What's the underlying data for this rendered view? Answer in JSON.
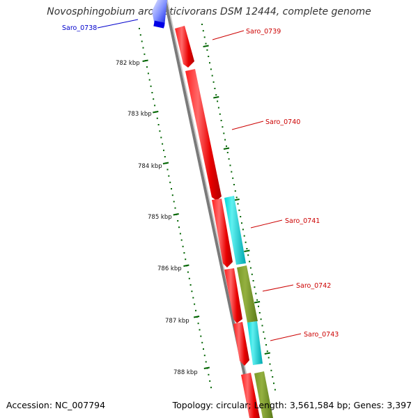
{
  "title": "Novosphingobium aromaticivorans DSM 12444, complete genome",
  "footer": {
    "accession": "Accession: NC_007794",
    "topology": "Topology: circular; Length: 3,561,584 bp; Genes: 3,397"
  },
  "ticks": [
    "782 kbp",
    "783 kbp",
    "784 kbp",
    "785 kbp",
    "786 kbp",
    "787 kbp",
    "788 kbp"
  ],
  "genes": [
    {
      "label": "Saro_0738",
      "color": "#1010cc"
    },
    {
      "label": "Saro_0739",
      "color": "#cc0000"
    },
    {
      "label": "Saro_0740",
      "color": "#cc0000"
    },
    {
      "label": "Saro_0741",
      "color": "#cc0000"
    },
    {
      "label": "Saro_0742",
      "color": "#cc0000"
    },
    {
      "label": "Saro_0743",
      "color": "#cc0000"
    }
  ],
  "colors": {
    "forward_cds": "#ff0000",
    "cyan_feature": "#00cccc",
    "olive_feature": "#6b8e23",
    "blue_feature": "#0000ff",
    "backbone": "#808080",
    "ticks": "#006400"
  }
}
